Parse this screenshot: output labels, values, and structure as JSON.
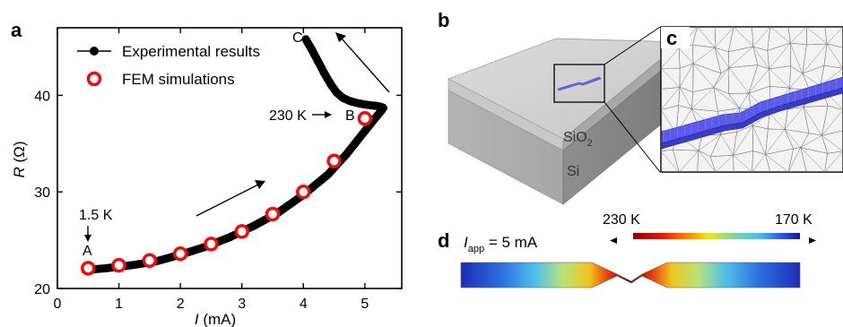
{
  "panels": {
    "a": "a",
    "b": "b",
    "c": "c",
    "d": "d"
  },
  "chart_data": {
    "type": "scatter",
    "xlabel_var": "I",
    "xlabel_unit": " (mA)",
    "ylabel_var": "R",
    "ylabel_unit": " (Ω)",
    "xlim": [
      0,
      5.6
    ],
    "ylim": [
      20,
      47
    ],
    "x_ticks": [
      0,
      1,
      2,
      3,
      4,
      5
    ],
    "x_tick_labels": [
      "0",
      "1",
      "2",
      "3",
      "4",
      "5"
    ],
    "y_ticks": [
      20,
      30,
      40
    ],
    "y_tick_labels": [
      "20",
      "30",
      "40"
    ],
    "legend_position": "top-left",
    "series": [
      {
        "name": "Experimental results",
        "color": "#000000",
        "marker": "filled-circle",
        "points": [
          [
            0.45,
            21.9
          ],
          [
            0.8,
            22.1
          ],
          [
            1.2,
            22.4
          ],
          [
            1.6,
            22.8
          ],
          [
            2.0,
            23.5
          ],
          [
            2.4,
            24.3
          ],
          [
            2.8,
            25.3
          ],
          [
            3.2,
            26.5
          ],
          [
            3.6,
            27.9
          ],
          [
            4.0,
            29.7
          ],
          [
            4.4,
            31.8
          ],
          [
            4.7,
            33.9
          ],
          [
            4.95,
            35.9
          ],
          [
            5.15,
            37.5
          ],
          [
            5.28,
            38.5
          ],
          [
            5.3,
            38.7
          ],
          [
            5.27,
            38.8
          ],
          [
            5.2,
            38.9
          ],
          [
            5.12,
            38.95
          ],
          [
            5.0,
            39.05
          ],
          [
            4.88,
            39.2
          ],
          [
            4.76,
            39.4
          ],
          [
            4.64,
            39.75
          ],
          [
            4.54,
            40.3
          ],
          [
            4.44,
            41.2
          ],
          [
            4.34,
            42.3
          ],
          [
            4.24,
            43.5
          ],
          [
            4.14,
            44.7
          ],
          [
            4.04,
            45.8
          ]
        ]
      },
      {
        "name": "FEM simulations",
        "color": "#e8100c",
        "marker": "open-circle",
        "points": [
          [
            0.5,
            22.1
          ],
          [
            1.0,
            22.4
          ],
          [
            1.5,
            22.9
          ],
          [
            2.0,
            23.6
          ],
          [
            2.5,
            24.6
          ],
          [
            3.0,
            25.9
          ],
          [
            3.5,
            27.7
          ],
          [
            4.0,
            30.0
          ],
          [
            4.5,
            33.2
          ],
          [
            5.0,
            37.6
          ]
        ]
      }
    ],
    "annotations": {
      "A": "A",
      "B_temp": "230 K",
      "B": "B",
      "C": "C",
      "start_temp": "1.5 K"
    }
  },
  "device": {
    "oxide_label_base": "SiO",
    "oxide_label_sub": "2",
    "substrate_label": "Si"
  },
  "temperature_map": {
    "current_var": "I",
    "current_sub": "app",
    "current_value": " = 5 mA",
    "colorbar_high": "230 K",
    "colorbar_low": "170 K",
    "colors": {
      "hot": "#8b0000",
      "warm": "#ff6a00",
      "mid": "#f2e41c",
      "cool": "#4fc0e8",
      "cold": "#1d2cb8"
    }
  }
}
